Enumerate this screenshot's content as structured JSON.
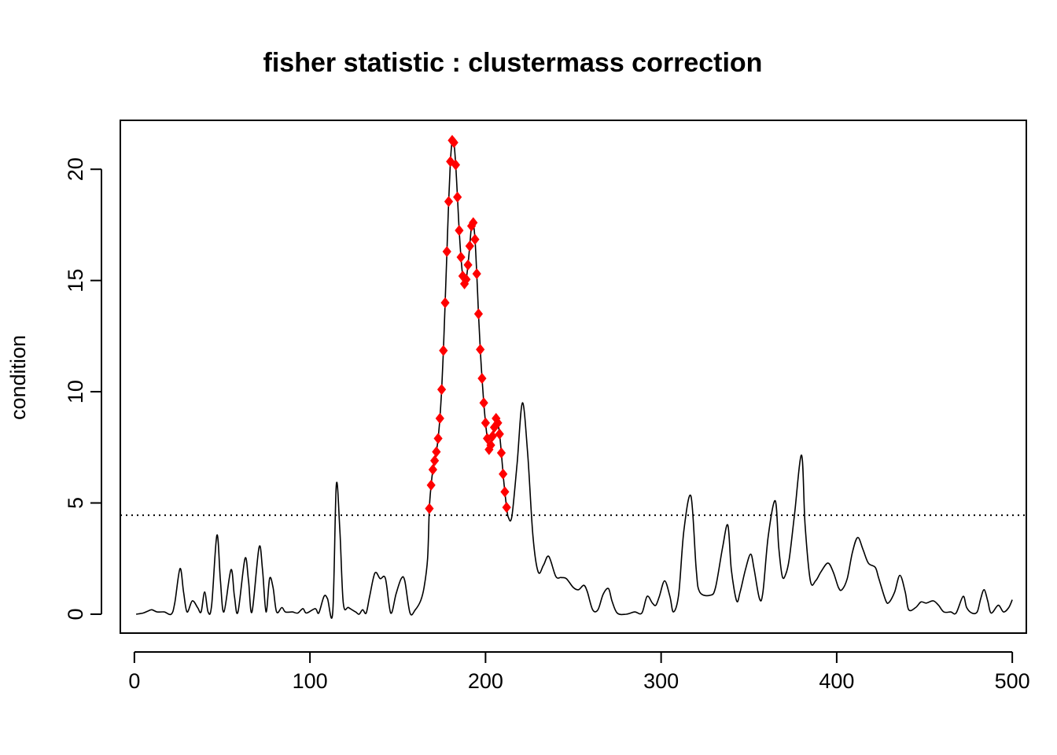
{
  "chart_data": {
    "type": "line",
    "title": "fisher statistic : clustermass correction",
    "xlabel": "",
    "ylabel": "condition",
    "xlim": [
      -8,
      508
    ],
    "ylim": [
      -0.85,
      22.2
    ],
    "x_ticks": [
      0,
      100,
      200,
      300,
      400,
      500
    ],
    "y_ticks": [
      0,
      5,
      10,
      15,
      20
    ],
    "grid": false,
    "threshold": 4.45,
    "threshold_style": "dotted",
    "line_color": "#000000",
    "marker_color": "#ff0000",
    "marker_shape": "diamond",
    "curve": [
      [
        1,
        0.0
      ],
      [
        5,
        0.05
      ],
      [
        8,
        0.15
      ],
      [
        10,
        0.2
      ],
      [
        13,
        0.1
      ],
      [
        17,
        0.1
      ],
      [
        21,
        0.0
      ],
      [
        23,
        0.5
      ],
      [
        26,
        2.05
      ],
      [
        28,
        1.0
      ],
      [
        30,
        0.1
      ],
      [
        33,
        0.6
      ],
      [
        36,
        0.3
      ],
      [
        38,
        0.1
      ],
      [
        40,
        1.0
      ],
      [
        42,
        0.1
      ],
      [
        44,
        0.4
      ],
      [
        47,
        3.55
      ],
      [
        49,
        1.5
      ],
      [
        51,
        0.1
      ],
      [
        55,
        2.0
      ],
      [
        57,
        0.8
      ],
      [
        59,
        0.1
      ],
      [
        63,
        2.5
      ],
      [
        65,
        1.5
      ],
      [
        67,
        0.1
      ],
      [
        71,
        3.0
      ],
      [
        73,
        2.0
      ],
      [
        75,
        0.1
      ],
      [
        77,
        1.6
      ],
      [
        79,
        1.2
      ],
      [
        81,
        0.1
      ],
      [
        84,
        0.3
      ],
      [
        86,
        0.1
      ],
      [
        90,
        0.1
      ],
      [
        93,
        0.05
      ],
      [
        96,
        0.25
      ],
      [
        98,
        0.05
      ],
      [
        103,
        0.25
      ],
      [
        105,
        0.05
      ],
      [
        108,
        0.8
      ],
      [
        110,
        0.7
      ],
      [
        113,
        0.1
      ],
      [
        115,
        5.8
      ],
      [
        117,
        3.8
      ],
      [
        119,
        0.5
      ],
      [
        122,
        0.3
      ],
      [
        126,
        0.1
      ],
      [
        128,
        0.0
      ],
      [
        130,
        0.2
      ],
      [
        132,
        0.05
      ],
      [
        134,
        0.8
      ],
      [
        137,
        1.85
      ],
      [
        140,
        1.6
      ],
      [
        143,
        1.6
      ],
      [
        146,
        0.05
      ],
      [
        149,
        0.9
      ],
      [
        152,
        1.6
      ],
      [
        154,
        1.5
      ],
      [
        157,
        0.05
      ],
      [
        160,
        0.2
      ],
      [
        163,
        0.6
      ],
      [
        165,
        1.2
      ],
      [
        167,
        2.5
      ],
      [
        168,
        4.75
      ],
      [
        169,
        5.8
      ],
      [
        170,
        6.5
      ],
      [
        171,
        6.9
      ],
      [
        172,
        7.3
      ],
      [
        173,
        7.9
      ],
      [
        174,
        8.8
      ],
      [
        175,
        10.1
      ],
      [
        176,
        11.85
      ],
      [
        177,
        14.0
      ],
      [
        178,
        16.3
      ],
      [
        179,
        18.55
      ],
      [
        180,
        20.35
      ],
      [
        181,
        21.3
      ],
      [
        182,
        21.2
      ],
      [
        183,
        20.2
      ],
      [
        184,
        18.75
      ],
      [
        185,
        17.25
      ],
      [
        186,
        16.05
      ],
      [
        187,
        15.2
      ],
      [
        188,
        14.85
      ],
      [
        189,
        15.05
      ],
      [
        190,
        15.7
      ],
      [
        191,
        16.55
      ],
      [
        192,
        17.45
      ],
      [
        193,
        17.6
      ],
      [
        194,
        16.85
      ],
      [
        195,
        15.3
      ],
      [
        196,
        13.5
      ],
      [
        197,
        11.9
      ],
      [
        198,
        10.6
      ],
      [
        199,
        9.5
      ],
      [
        200,
        8.6
      ],
      [
        201,
        7.9
      ],
      [
        202,
        7.4
      ],
      [
        203,
        7.6
      ],
      [
        204,
        8.0
      ],
      [
        205,
        8.4
      ],
      [
        206,
        8.8
      ],
      [
        207,
        8.6
      ],
      [
        208,
        8.1
      ],
      [
        209,
        7.25
      ],
      [
        210,
        6.3
      ],
      [
        211,
        5.5
      ],
      [
        212,
        4.8
      ],
      [
        213,
        4.35
      ],
      [
        215,
        4.4
      ],
      [
        218,
        6.8
      ],
      [
        221,
        9.5
      ],
      [
        224,
        7.2
      ],
      [
        227,
        3.5
      ],
      [
        230,
        1.9
      ],
      [
        233,
        2.2
      ],
      [
        236,
        2.6
      ],
      [
        240,
        1.7
      ],
      [
        243,
        1.65
      ],
      [
        246,
        1.6
      ],
      [
        250,
        1.2
      ],
      [
        253,
        1.1
      ],
      [
        256,
        1.3
      ],
      [
        258,
        1.0
      ],
      [
        261,
        0.2
      ],
      [
        264,
        0.2
      ],
      [
        267,
        0.9
      ],
      [
        270,
        1.15
      ],
      [
        272,
        0.6
      ],
      [
        275,
        0.05
      ],
      [
        280,
        0.0
      ],
      [
        285,
        0.1
      ],
      [
        289,
        0.05
      ],
      [
        292,
        0.8
      ],
      [
        295,
        0.5
      ],
      [
        297,
        0.4
      ],
      [
        299,
        0.8
      ],
      [
        302,
        1.5
      ],
      [
        305,
        0.8
      ],
      [
        307,
        0.1
      ],
      [
        310,
        0.9
      ],
      [
        313,
        3.8
      ],
      [
        317,
        5.3
      ],
      [
        320,
        2.0
      ],
      [
        322,
        1.0
      ],
      [
        328,
        0.85
      ],
      [
        331,
        1.2
      ],
      [
        335,
        3.0
      ],
      [
        338,
        4.0
      ],
      [
        340,
        2.0
      ],
      [
        343,
        0.6
      ],
      [
        345,
        1.0
      ],
      [
        348,
        2.0
      ],
      [
        351,
        2.7
      ],
      [
        353,
        2.0
      ],
      [
        356,
        0.7
      ],
      [
        358,
        1.0
      ],
      [
        361,
        3.5
      ],
      [
        365,
        5.1
      ],
      [
        367,
        3.0
      ],
      [
        369,
        1.7
      ],
      [
        371,
        1.8
      ],
      [
        373,
        2.5
      ],
      [
        376,
        4.5
      ],
      [
        380,
        7.15
      ],
      [
        382,
        4.0
      ],
      [
        385,
        1.5
      ],
      [
        388,
        1.5
      ],
      [
        391,
        1.9
      ],
      [
        395,
        2.3
      ],
      [
        398,
        1.9
      ],
      [
        401,
        1.2
      ],
      [
        403,
        1.1
      ],
      [
        406,
        1.6
      ],
      [
        409,
        2.8
      ],
      [
        412,
        3.45
      ],
      [
        415,
        2.9
      ],
      [
        418,
        2.3
      ],
      [
        422,
        2.1
      ],
      [
        424,
        1.6
      ],
      [
        428,
        0.6
      ],
      [
        430,
        0.55
      ],
      [
        433,
        1.0
      ],
      [
        436,
        1.75
      ],
      [
        439,
        1.0
      ],
      [
        441,
        0.2
      ],
      [
        445,
        0.3
      ],
      [
        448,
        0.55
      ],
      [
        451,
        0.5
      ],
      [
        455,
        0.6
      ],
      [
        458,
        0.4
      ],
      [
        461,
        0.1
      ],
      [
        465,
        0.1
      ],
      [
        468,
        0.05
      ],
      [
        472,
        0.8
      ],
      [
        474,
        0.3
      ],
      [
        477,
        0.05
      ],
      [
        480,
        0.1
      ],
      [
        482,
        0.7
      ],
      [
        484,
        1.1
      ],
      [
        486,
        0.6
      ],
      [
        488,
        0.05
      ],
      [
        492,
        0.4
      ],
      [
        495,
        0.1
      ],
      [
        498,
        0.3
      ],
      [
        500,
        0.65
      ]
    ],
    "significant_points": [
      [
        168,
        4.75
      ],
      [
        169,
        5.8
      ],
      [
        170,
        6.5
      ],
      [
        171,
        6.9
      ],
      [
        172,
        7.3
      ],
      [
        173,
        7.9
      ],
      [
        174,
        8.8
      ],
      [
        175,
        10.1
      ],
      [
        176,
        11.85
      ],
      [
        177,
        14.0
      ],
      [
        178,
        16.3
      ],
      [
        179,
        18.55
      ],
      [
        180,
        20.35
      ],
      [
        181,
        21.3
      ],
      [
        182,
        21.2
      ],
      [
        183,
        20.2
      ],
      [
        184,
        18.75
      ],
      [
        185,
        17.25
      ],
      [
        186,
        16.05
      ],
      [
        187,
        15.2
      ],
      [
        188,
        14.85
      ],
      [
        189,
        15.05
      ],
      [
        190,
        15.7
      ],
      [
        191,
        16.55
      ],
      [
        192,
        17.45
      ],
      [
        193,
        17.6
      ],
      [
        194,
        16.85
      ],
      [
        195,
        15.3
      ],
      [
        196,
        13.5
      ],
      [
        197,
        11.9
      ],
      [
        198,
        10.6
      ],
      [
        199,
        9.5
      ],
      [
        200,
        8.6
      ],
      [
        201,
        7.9
      ],
      [
        202,
        7.4
      ],
      [
        203,
        7.6
      ],
      [
        204,
        8.0
      ],
      [
        205,
        8.4
      ],
      [
        206,
        8.8
      ],
      [
        207,
        8.6
      ],
      [
        208,
        8.1
      ],
      [
        209,
        7.25
      ],
      [
        210,
        6.3
      ],
      [
        211,
        5.5
      ],
      [
        212,
        4.8
      ]
    ]
  }
}
